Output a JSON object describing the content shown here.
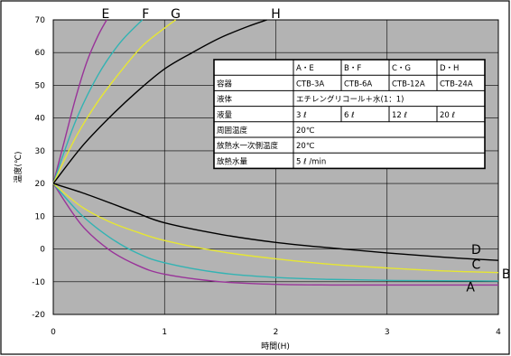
{
  "chart_data": {
    "type": "line",
    "xlabel": "時間(H)",
    "ylabel": "温度(℃)",
    "xlim": [
      0,
      4
    ],
    "ylim": [
      -20,
      70
    ],
    "x_ticks": [
      "0",
      "1",
      "2",
      "3",
      "4"
    ],
    "y_ticks": [
      "-20",
      "-10",
      "0",
      "10",
      "20",
      "30",
      "40",
      "50",
      "60",
      "70"
    ],
    "grid": true,
    "plot_background": "#b3b3b3",
    "series": [
      {
        "name": "A",
        "color": "#993399",
        "label_at": [
          3.75,
          -13
        ],
        "x": [
          0,
          0.25,
          0.5,
          0.75,
          1,
          1.5,
          2,
          2.5,
          3,
          3.5,
          4
        ],
        "y": [
          20,
          7.5,
          -0.2,
          -4.9,
          -7.7,
          -10.0,
          -10.8,
          -11.0,
          -11.0,
          -11.0,
          -11.0
        ]
      },
      {
        "name": "B",
        "color": "#33b3b3",
        "label_at": [
          4.07,
          -9
        ],
        "x": [
          0,
          0.25,
          0.5,
          0.75,
          1,
          1.5,
          2,
          2.5,
          3,
          3.5,
          4
        ],
        "y": [
          20,
          10.5,
          3.7,
          -1.2,
          -4.2,
          -7.3,
          -8.7,
          -9.3,
          -9.6,
          -9.7,
          -9.8
        ]
      },
      {
        "name": "C",
        "color": "#e6e633",
        "label_at": [
          3.8,
          -6
        ],
        "x": [
          0,
          0.25,
          0.5,
          0.75,
          1,
          1.5,
          2,
          2.5,
          3,
          3.5,
          4
        ],
        "y": [
          20,
          13.0,
          8.4,
          5.2,
          2.6,
          -0.8,
          -3.0,
          -4.7,
          -5.8,
          -6.7,
          -7.2
        ]
      },
      {
        "name": "D",
        "color": "#000000",
        "label_at": [
          3.8,
          -1.5
        ],
        "x": [
          0,
          0.25,
          0.5,
          0.75,
          1,
          1.5,
          2,
          2.5,
          3,
          3.5,
          4
        ],
        "y": [
          20,
          17.3,
          14.2,
          11.0,
          8.0,
          4.5,
          2.0,
          0.3,
          -1.2,
          -2.5,
          -3.5
        ]
      },
      {
        "name": "E",
        "color": "#993399",
        "label_at": [
          0.47,
          70.5
        ],
        "x": [
          0,
          0.1,
          0.2,
          0.3,
          0.4,
          0.48
        ],
        "y": [
          20,
          33,
          46,
          57,
          65,
          70
        ]
      },
      {
        "name": "F",
        "color": "#33b3b3",
        "label_at": [
          0.83,
          70.5
        ],
        "x": [
          0,
          0.2,
          0.4,
          0.6,
          0.8
        ],
        "y": [
          20,
          39,
          53,
          63,
          70
        ]
      },
      {
        "name": "G",
        "color": "#e6e633",
        "label_at": [
          1.1,
          70.5
        ],
        "x": [
          0,
          0.2,
          0.4,
          0.6,
          0.8,
          1.0,
          1.1
        ],
        "y": [
          20,
          34,
          45,
          54,
          62,
          67.5,
          70
        ]
      },
      {
        "name": "H",
        "color": "#000000",
        "label_at": [
          2.0,
          70.5
        ],
        "x": [
          0,
          0.25,
          0.5,
          0.75,
          1,
          1.25,
          1.5,
          1.75,
          1.92
        ],
        "y": [
          20,
          31,
          40,
          48,
          55,
          60,
          64.5,
          68,
          70
        ]
      }
    ],
    "table": {
      "header": [
        "",
        "A・E",
        "B・F",
        "C・G",
        "D・H"
      ],
      "rows": [
        {
          "label": "容器",
          "cells": [
            "CTB-3A",
            "CTB-6A",
            "CTB-12A",
            "CTB-24A"
          ]
        },
        {
          "label": "液体",
          "merged": "エチレングリコール＋水(1：1)"
        },
        {
          "label": "液量",
          "cells": [
            "3 ℓ",
            "6 ℓ",
            "12 ℓ",
            "20 ℓ"
          ]
        },
        {
          "label": "周囲温度",
          "merged": "20℃"
        },
        {
          "label": "放熱水一次側温度",
          "merged": "20℃"
        },
        {
          "label": "放熱水量",
          "merged": "5 ℓ /min"
        }
      ]
    }
  }
}
